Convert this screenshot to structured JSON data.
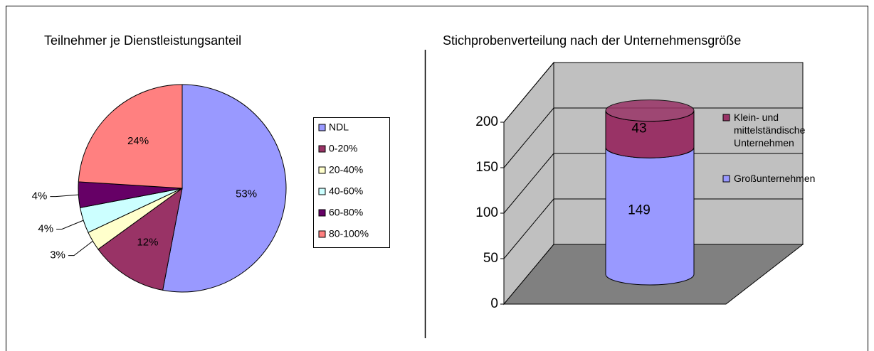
{
  "chart_data": [
    {
      "type": "pie",
      "title": "Teilnehmer je Dienstleistungsanteil",
      "categories": [
        "NDL",
        "0-20%",
        "20-40%",
        "40-60%",
        "60-80%",
        "80-100%"
      ],
      "values": [
        53,
        12,
        3,
        4,
        4,
        24
      ],
      "value_labels": [
        "53%",
        "12%",
        "3%",
        "4%",
        "4%",
        "24%"
      ],
      "colors": [
        "#9999ff",
        "#993366",
        "#ffffcc",
        "#ccffff",
        "#660066",
        "#ff8080"
      ],
      "legend": "right"
    },
    {
      "type": "bar3d-stacked",
      "title": "Stichprobenverteilung nach der Unternehmensgröße",
      "categories": [
        null
      ],
      "series": [
        {
          "name": "Großunternehmen",
          "color": "#9999ff",
          "values": [
            149
          ]
        },
        {
          "name": "Klein- und mittelständische Unternehmen",
          "color": "#993366",
          "values": [
            43
          ]
        }
      ],
      "ylim": [
        0,
        200
      ],
      "yticks": [
        0,
        50,
        100,
        150,
        200
      ],
      "grid": true,
      "legend": "right"
    }
  ]
}
